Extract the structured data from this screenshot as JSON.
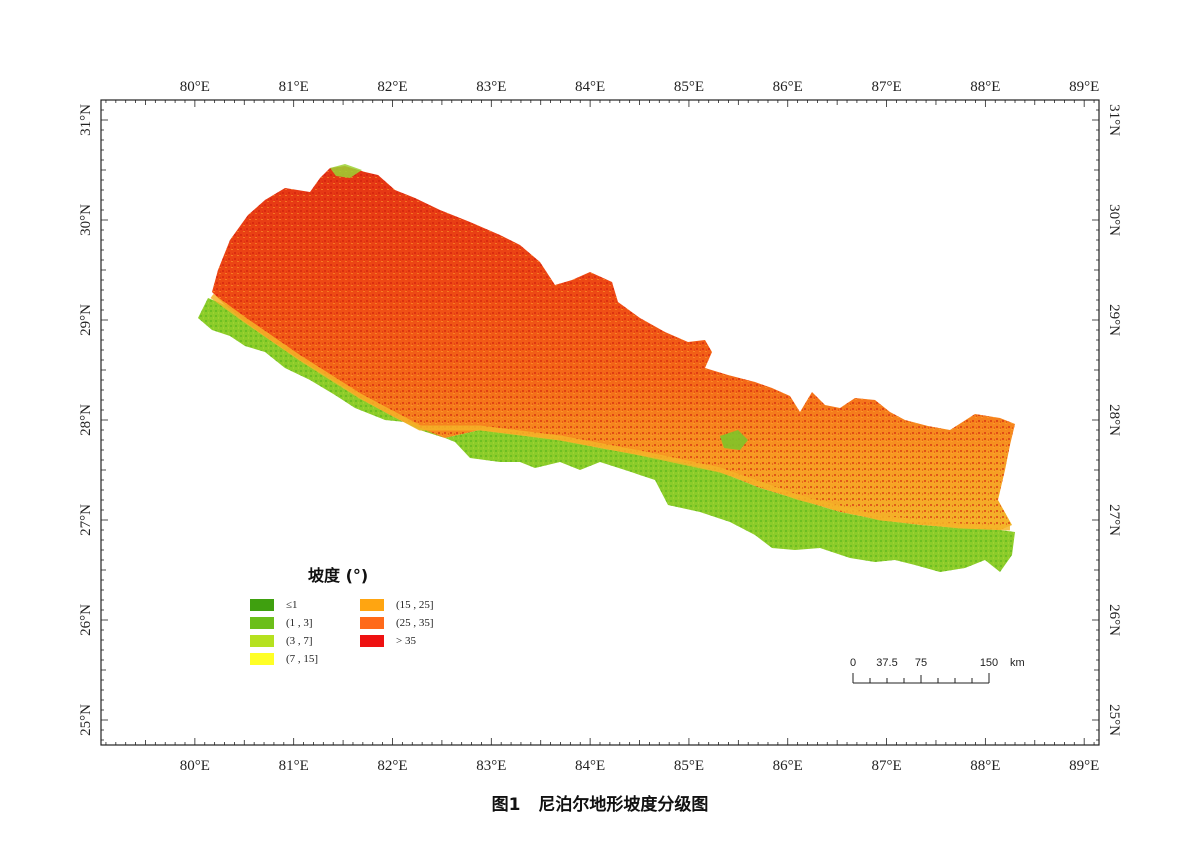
{
  "map": {
    "lon_labels": [
      "80°E",
      "81°E",
      "82°E",
      "83°E",
      "84°E",
      "85°E",
      "86°E",
      "87°E",
      "88°E",
      "89°E"
    ],
    "lat_labels": [
      "25°N",
      "26°N",
      "27°N",
      "28°N",
      "29°N",
      "30°N",
      "31°N"
    ],
    "lon_range": [
      79.05,
      89.15
    ],
    "lat_range": [
      24.75,
      31.2
    ]
  },
  "legend": {
    "title": "坡度 (°)",
    "items": [
      {
        "label": "≤1",
        "color": "#3fa00f"
      },
      {
        "label": "(1 , 3]",
        "color": "#6cbf1a"
      },
      {
        "label": "(3 , 7]",
        "color": "#b5e11f"
      },
      {
        "label": "(7 , 15]",
        "color": "#ffff26"
      },
      {
        "label": "(15 , 25]",
        "color": "#ffa511"
      },
      {
        "label": "(25 , 35]",
        "color": "#ff6a1a"
      },
      {
        "label": "> 35",
        "color": "#ee1111"
      }
    ]
  },
  "scale_bar": {
    "labels": [
      "0",
      "37.5",
      "75",
      "150"
    ],
    "unit": "km"
  },
  "caption": {
    "figure_number": "图1",
    "title": "尼泊尔地形坡度分级图"
  }
}
